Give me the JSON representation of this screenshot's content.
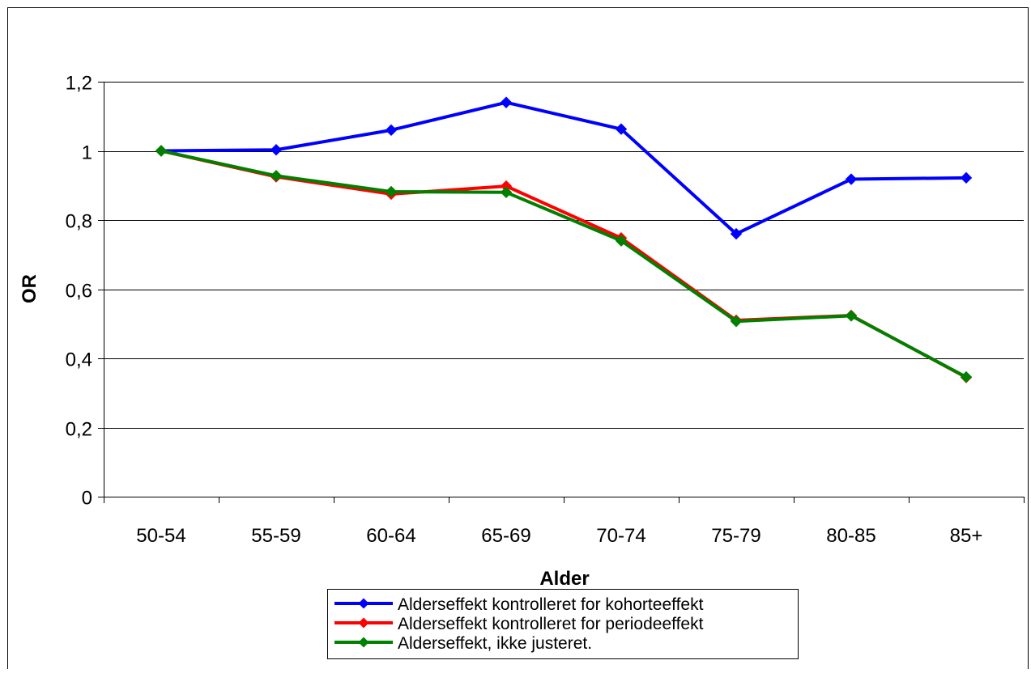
{
  "chart_data": {
    "type": "line",
    "title": "",
    "xlabel": "Alder",
    "ylabel": "OR",
    "categories": [
      "50-54",
      "55-59",
      "60-64",
      "65-69",
      "70-74",
      "75-79",
      "80-85",
      "85+"
    ],
    "ylim": [
      0,
      1.2
    ],
    "yticks": [
      "0",
      "0,2",
      "0,4",
      "0,6",
      "0,8",
      "1",
      "1,2"
    ],
    "grid": true,
    "legend_position": "bottom",
    "series": [
      {
        "name": "Alderseffekt kontrolleret for kohorteeffekt",
        "color": "#0000ff",
        "values": [
          1.0,
          1.003,
          1.06,
          1.14,
          1.063,
          0.76,
          0.918,
          0.922
        ]
      },
      {
        "name": "Alderseffekt kontrolleret for periodeeffekt",
        "color": "#ff0000",
        "values": [
          1.0,
          0.925,
          0.875,
          0.898,
          0.748,
          0.51,
          0.524,
          0.345
        ]
      },
      {
        "name": "Alderseffekt, ikke justeret.",
        "color": "#008000",
        "values": [
          1.0,
          0.928,
          0.882,
          0.88,
          0.74,
          0.507,
          0.523,
          0.346
        ]
      }
    ]
  }
}
